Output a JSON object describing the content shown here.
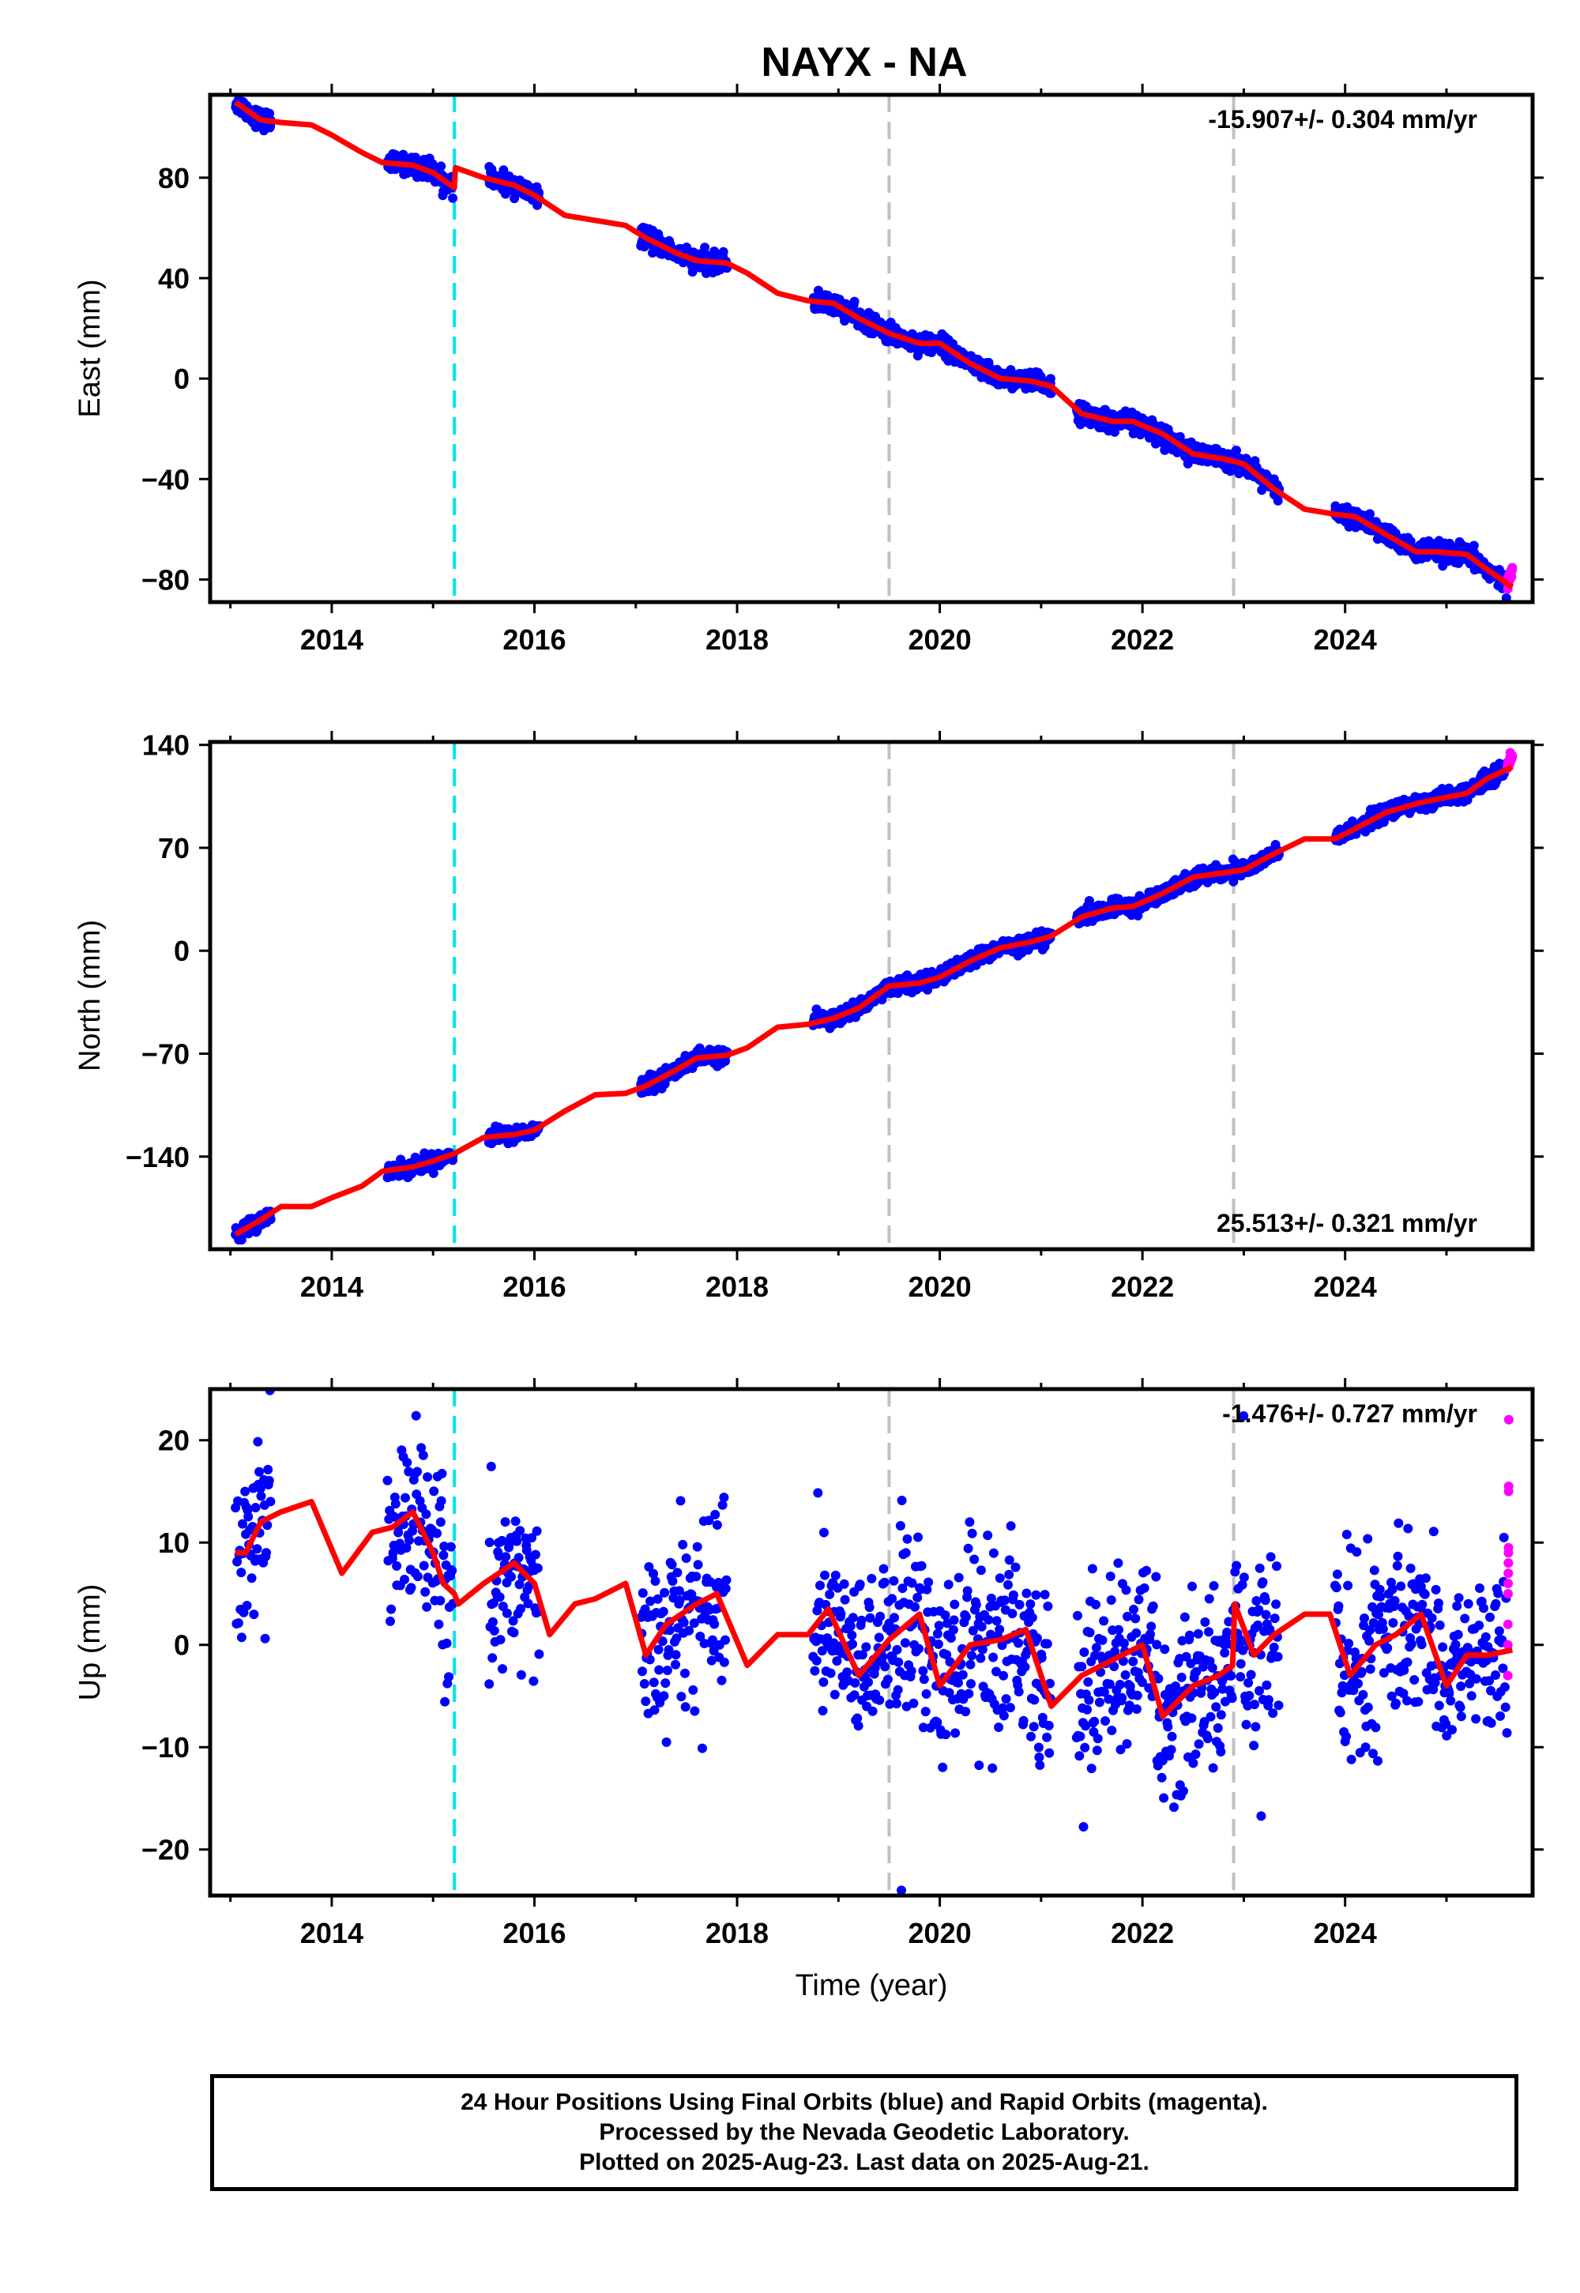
{
  "figure_title": "NAYX - NA",
  "footer": {
    "line1": "24 Hour Positions Using Final Orbits (blue) and Rapid Orbits (magenta).",
    "line2": "Processed by the Nevada Geodetic Laboratory.",
    "line3": "Plotted on 2025-Aug-23. Last data on 2025-Aug-21."
  },
  "colors": {
    "final_orbits": "#0000ff",
    "rapid_orbits": "#ff00ff",
    "model_fit": "#ff0000",
    "antenna_change_line": "#00e5ee",
    "equipment_change_line": "#c0c0c0"
  },
  "chart_data": [
    {
      "type": "scatter",
      "ylabel": "East (mm)",
      "xlim": [
        2012.8,
        2025.85
      ],
      "ylim": [
        -89,
        113
      ],
      "yticks": [
        -80,
        -40,
        0,
        40,
        80
      ],
      "xticks": [
        2014,
        2016,
        2018,
        2020,
        2022,
        2024
      ],
      "rate_label": "-15.907+/- 0.304 mm/yr",
      "rate_position": "top-right",
      "vertical_lines": [
        {
          "x": 2015.21,
          "style": "cyan-dashed"
        },
        {
          "x": 2019.5,
          "style": "gray-dashed"
        },
        {
          "x": 2022.9,
          "style": "gray-dashed"
        }
      ],
      "data_segments": [
        [
          2013.05,
          2013.4
        ],
        [
          2014.55,
          2015.2
        ],
        [
          2015.55,
          2016.05
        ],
        [
          2017.05,
          2017.9
        ],
        [
          2018.75,
          2021.1
        ],
        [
          2021.35,
          2023.35
        ],
        [
          2023.9,
          2025.6
        ]
      ],
      "rapid_segment": [
        2025.6,
        2025.65
      ],
      "noise": 1.8,
      "fit": {
        "x": [
          2013.05,
          2013.3,
          2013.5,
          2013.8,
          2014.0,
          2014.3,
          2014.5,
          2014.8,
          2015.0,
          2015.21,
          2015.22,
          2015.5,
          2015.8,
          2016.0,
          2016.3,
          2016.6,
          2016.9,
          2017.1,
          2017.4,
          2017.6,
          2017.9,
          2018.1,
          2018.4,
          2018.7,
          2018.95,
          2019.2,
          2019.5,
          2019.8,
          2020.0,
          2020.3,
          2020.6,
          2020.9,
          2021.1,
          2021.4,
          2021.7,
          2021.9,
          2022.2,
          2022.5,
          2022.8,
          2023.0,
          2023.3,
          2023.6,
          2023.9,
          2024.1,
          2024.4,
          2024.7,
          2024.9,
          2025.2,
          2025.4,
          2025.65
        ],
        "y": [
          110,
          103,
          102,
          101,
          97,
          90,
          86,
          85,
          82,
          76,
          84,
          80,
          77,
          73,
          65,
          63,
          61,
          56,
          50,
          47,
          46,
          42,
          34,
          31,
          30,
          24,
          18,
          14,
          14,
          6,
          0,
          -1,
          -3,
          -14,
          -17,
          -17,
          -22,
          -30,
          -32,
          -34,
          -44,
          -52,
          -54,
          -55,
          -62,
          -69,
          -69,
          -70,
          -76,
          -83
        ]
      },
      "rapid_values": [
        -82,
        -76
      ]
    },
    {
      "type": "scatter",
      "ylabel": "North (mm)",
      "xlim": [
        2012.8,
        2025.85
      ],
      "ylim": [
        -203,
        142
      ],
      "yticks": [
        -140,
        -70,
        0,
        70,
        140
      ],
      "xticks": [
        2014,
        2016,
        2018,
        2020,
        2022,
        2024
      ],
      "rate_label": "25.513+/- 0.321 mm/yr",
      "rate_position": "bottom-right",
      "vertical_lines": [
        {
          "x": 2015.21,
          "style": "cyan-dashed"
        },
        {
          "x": 2019.5,
          "style": "gray-dashed"
        },
        {
          "x": 2022.9,
          "style": "gray-dashed"
        }
      ],
      "data_segments": [
        [
          2013.05,
          2013.4
        ],
        [
          2014.55,
          2015.2
        ],
        [
          2015.55,
          2016.05
        ],
        [
          2017.05,
          2017.9
        ],
        [
          2018.75,
          2021.1
        ],
        [
          2021.35,
          2023.35
        ],
        [
          2023.9,
          2025.6
        ]
      ],
      "rapid_segment": [
        2025.6,
        2025.65
      ],
      "noise": 2.5,
      "fit": {
        "x": [
          2013.05,
          2013.3,
          2013.5,
          2013.8,
          2014.0,
          2014.3,
          2014.5,
          2014.8,
          2015.0,
          2015.21,
          2015.5,
          2015.8,
          2016.0,
          2016.3,
          2016.6,
          2016.9,
          2017.1,
          2017.4,
          2017.6,
          2017.9,
          2018.1,
          2018.4,
          2018.7,
          2018.95,
          2019.2,
          2019.5,
          2019.8,
          2020.0,
          2020.3,
          2020.6,
          2020.9,
          2021.1,
          2021.4,
          2021.7,
          2021.9,
          2022.2,
          2022.5,
          2022.8,
          2023.0,
          2023.3,
          2023.6,
          2023.9,
          2024.1,
          2024.4,
          2024.7,
          2024.9,
          2025.2,
          2025.4,
          2025.65
        ],
        "y": [
          -193,
          -183,
          -174,
          -174,
          -168,
          -160,
          -150,
          -147,
          -143,
          -138,
          -127,
          -125,
          -122,
          -109,
          -98,
          -97,
          -92,
          -81,
          -73,
          -71,
          -66,
          -52,
          -50,
          -46,
          -39,
          -24,
          -22,
          -18,
          -7,
          2,
          6,
          10,
          23,
          29,
          30,
          39,
          50,
          53,
          55,
          66,
          76,
          76,
          83,
          94,
          100,
          103,
          107,
          117,
          125
        ]
      },
      "rapid_values": [
        126,
        132
      ]
    },
    {
      "type": "scatter",
      "ylabel": "Up (mm)",
      "xlabel": "Time (year)",
      "xlim": [
        2012.8,
        2025.85
      ],
      "ylim": [
        -24.5,
        25
      ],
      "yticks": [
        -20,
        -10,
        0,
        10,
        20
      ],
      "xticks": [
        2014,
        2016,
        2018,
        2020,
        2022,
        2024
      ],
      "rate_label": "-1.476+/- 0.727 mm/yr",
      "rate_position": "top-right",
      "vertical_lines": [
        {
          "x": 2015.21,
          "style": "cyan-dashed"
        },
        {
          "x": 2019.5,
          "style": "gray-dashed"
        },
        {
          "x": 2022.9,
          "style": "gray-dashed"
        }
      ],
      "data_segments": [
        [
          2013.05,
          2013.4
        ],
        [
          2014.55,
          2015.2
        ],
        [
          2015.55,
          2016.05
        ],
        [
          2017.05,
          2017.9
        ],
        [
          2018.75,
          2021.1
        ],
        [
          2021.35,
          2023.35
        ],
        [
          2023.9,
          2025.6
        ]
      ],
      "rapid_segment": [
        2025.6,
        2025.65
      ],
      "noise": 4.5,
      "fit": {
        "x": [
          2013.05,
          2013.15,
          2013.3,
          2013.5,
          2013.8,
          2014.1,
          2014.4,
          2014.6,
          2014.8,
          2015.0,
          2015.1,
          2015.21,
          2015.25,
          2015.5,
          2015.8,
          2016.0,
          2016.15,
          2016.4,
          2016.6,
          2016.9,
          2017.1,
          2017.3,
          2017.6,
          2017.8,
          2018.1,
          2018.4,
          2018.7,
          2018.9,
          2019.2,
          2019.5,
          2019.8,
          2020.0,
          2020.3,
          2020.6,
          2020.85,
          2021.1,
          2021.4,
          2021.6,
          2021.8,
          2022.0,
          2022.2,
          2022.5,
          2022.75,
          2022.89,
          2022.91,
          2023.1,
          2023.3,
          2023.6,
          2023.85,
          2024.05,
          2024.3,
          2024.5,
          2024.75,
          2025.0,
          2025.2,
          2025.4,
          2025.65
        ],
        "y": [
          9,
          9,
          12,
          13,
          14,
          7,
          11,
          11.5,
          13,
          9,
          6,
          5,
          4,
          6,
          8,
          6,
          1,
          4,
          4.5,
          6,
          -1,
          2,
          4,
          5,
          -2,
          1,
          1,
          3.5,
          -3,
          0.5,
          3,
          -4,
          0,
          0.5,
          1.5,
          -6,
          -3,
          -2,
          -1,
          0,
          -7,
          -4,
          -3,
          -2,
          4,
          -1,
          1,
          3,
          3,
          -3,
          0,
          1,
          3,
          -4,
          -1,
          -1,
          -0.5
        ]
      },
      "rapid_values": [
        -3,
        0,
        2,
        5,
        6,
        7,
        8,
        9,
        9.5,
        15,
        15.5,
        22
      ]
    }
  ]
}
